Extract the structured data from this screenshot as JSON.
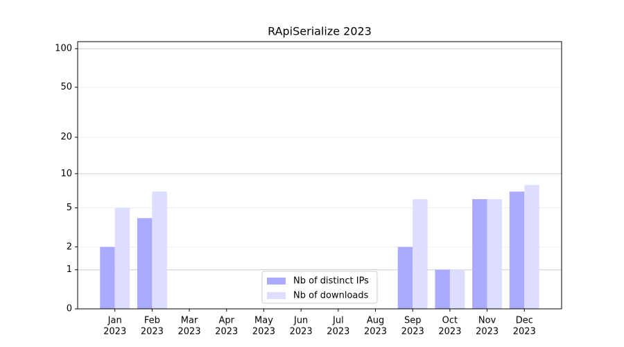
{
  "chart_data": {
    "type": "bar",
    "title": "RApiSerialize 2023",
    "categories": [
      [
        "Jan",
        "2023"
      ],
      [
        "Feb",
        "2023"
      ],
      [
        "Mar",
        "2023"
      ],
      [
        "Apr",
        "2023"
      ],
      [
        "May",
        "2023"
      ],
      [
        "Jun",
        "2023"
      ],
      [
        "Jul",
        "2023"
      ],
      [
        "Aug",
        "2023"
      ],
      [
        "Sep",
        "2023"
      ],
      [
        "Oct",
        "2023"
      ],
      [
        "Nov",
        "2023"
      ],
      [
        "Dec",
        "2023"
      ]
    ],
    "series": [
      {
        "name": "Nb of distinct IPs",
        "color": "#aaaaff",
        "values": [
          2,
          4,
          0,
          0,
          0,
          0,
          0,
          0,
          2,
          1,
          6,
          7
        ]
      },
      {
        "name": "Nb of downloads",
        "color": "#ddddff",
        "values": [
          5,
          7,
          0,
          0,
          0,
          0,
          0,
          0,
          6,
          1,
          6,
          8
        ]
      }
    ],
    "yscale": "log1p",
    "ylim": [
      0,
      113.5
    ],
    "yticks": [
      0,
      1,
      2,
      5,
      10,
      20,
      50,
      100
    ],
    "grid": true,
    "legend": "lower center"
  }
}
